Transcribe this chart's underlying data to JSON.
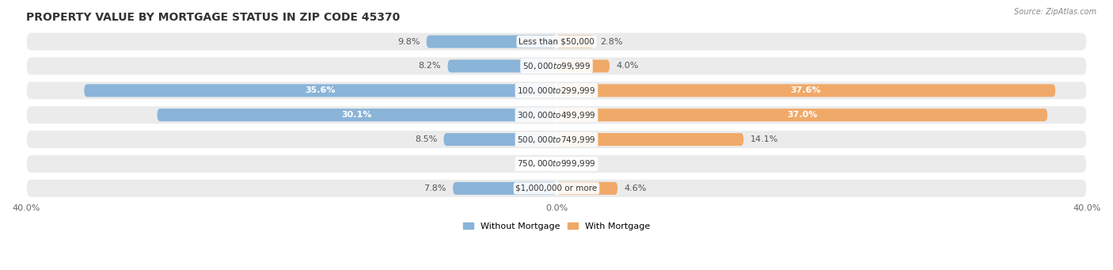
{
  "title": "PROPERTY VALUE BY MORTGAGE STATUS IN ZIP CODE 45370",
  "source": "Source: ZipAtlas.com",
  "categories": [
    "Less than $50,000",
    "$50,000 to $99,999",
    "$100,000 to $299,999",
    "$300,000 to $499,999",
    "$500,000 to $749,999",
    "$750,000 to $999,999",
    "$1,000,000 or more"
  ],
  "without_mortgage": [
    9.8,
    8.2,
    35.6,
    30.1,
    8.5,
    0.0,
    7.8
  ],
  "with_mortgage": [
    2.8,
    4.0,
    37.6,
    37.0,
    14.1,
    0.0,
    4.6
  ],
  "color_without": "#8ab4d8",
  "color_with": "#f0a968",
  "color_without_light": "#b8d3e8",
  "color_with_light": "#f5c99a",
  "axis_max": 40.0,
  "bg_row_color": "#ebebeb",
  "bar_height": 0.52,
  "title_fontsize": 10,
  "label_fontsize": 8,
  "category_fontsize": 7.5,
  "legend_fontsize": 8,
  "axis_label_fontsize": 8
}
